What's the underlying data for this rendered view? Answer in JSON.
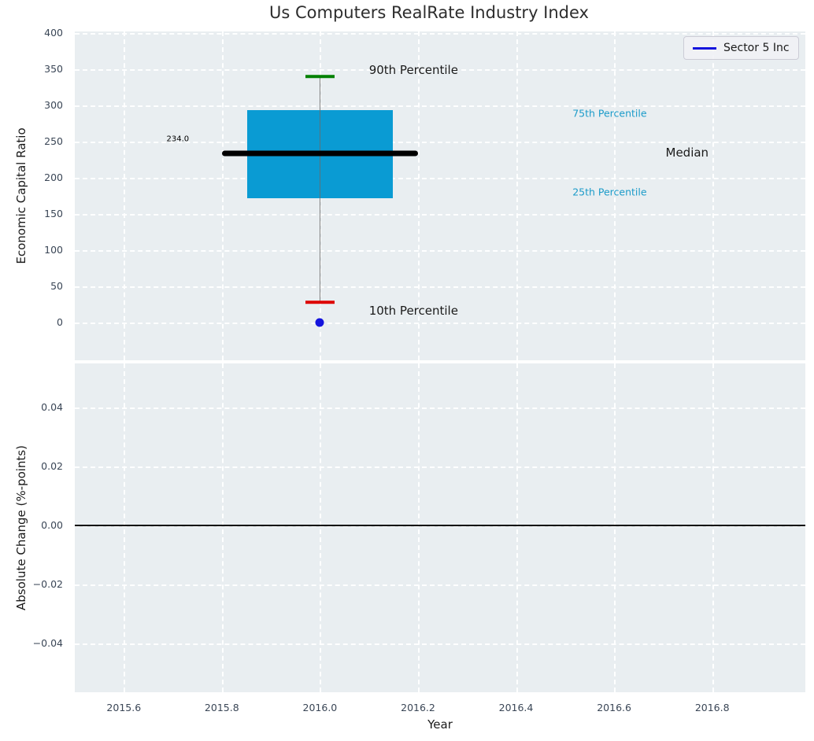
{
  "title": "Us Computers RealRate Industry Index",
  "colors": {
    "axes_background": "#e9eef1",
    "grid": "#ffffff",
    "tick_label": "#3a4656",
    "axis_label": "#1a1a1a",
    "title": "#2d2d2d"
  },
  "legend": {
    "position": "upper right",
    "items": [
      {
        "label": "Sector 5 Inc",
        "color": "#1414dd"
      }
    ]
  },
  "chart_data": [
    {
      "type": "boxplot",
      "panel": "top",
      "ylabel": "Economic Capital Ratio",
      "xlim": [
        2015.5,
        2016.99
      ],
      "ylim": [
        -52,
        402
      ],
      "xtick_values": [
        2015.6,
        2015.8,
        2016.0,
        2016.2,
        2016.4,
        2016.6,
        2016.8
      ],
      "ytick_values": [
        0,
        50,
        100,
        150,
        200,
        250,
        300,
        350,
        400
      ],
      "ytick_labels": [
        "0",
        "50",
        "100",
        "150",
        "200",
        "250",
        "300",
        "350",
        "400"
      ],
      "grid": true,
      "box": {
        "x": 2016.0,
        "p10": 28,
        "p25": 172,
        "median": 234.0,
        "p75": 293,
        "p90": 340,
        "median_label": "234.0",
        "box_half_width": 0.148,
        "median_half_width": 0.2,
        "cap_half_width": 0.03,
        "box_color": "#0a9bd3",
        "median_color": "#000000",
        "whisker_color": "#6b6b6b",
        "p90_cap_color": "#008000",
        "p10_cap_color": "#dd0000"
      },
      "company_point": {
        "x": 2016.0,
        "y": 0,
        "color": "#1414dd",
        "label": "Sector 5 Inc"
      },
      "annotations": [
        {
          "text": "90th Percentile",
          "x": 2016.1,
          "y": 349,
          "color": "#1a1a1a",
          "size": 15,
          "align": "left"
        },
        {
          "text": "75th Percentile",
          "x": 2016.515,
          "y": 289,
          "color": "#1b9bc9",
          "size": 12.5,
          "align": "left"
        },
        {
          "text": "Median",
          "x": 2016.705,
          "y": 235,
          "color": "#1a1a1a",
          "size": 15,
          "align": "left"
        },
        {
          "text": "25th Percentile",
          "x": 2016.515,
          "y": 180,
          "color": "#1b9bc9",
          "size": 12.5,
          "align": "left"
        },
        {
          "text": "10th Percentile",
          "x": 2016.1,
          "y": 16,
          "color": "#1a1a1a",
          "size": 15,
          "align": "left"
        },
        {
          "text": "234.0",
          "x": 2015.71,
          "y": 253,
          "color": "#000000",
          "size": 10,
          "align": "center"
        }
      ]
    },
    {
      "type": "line",
      "panel": "bottom",
      "xlabel": "Year",
      "ylabel": "Absolute Change (%-points)",
      "xlim": [
        2015.5,
        2016.99
      ],
      "ylim": [
        -0.0565,
        0.0549
      ],
      "xtick_values": [
        2015.6,
        2015.8,
        2016.0,
        2016.2,
        2016.4,
        2016.6,
        2016.8
      ],
      "xtick_labels": [
        "2015.6",
        "2015.8",
        "2016.0",
        "2016.2",
        "2016.4",
        "2016.6",
        "2016.8"
      ],
      "ytick_values": [
        0.04,
        0.02,
        0.0,
        -0.02,
        -0.04
      ],
      "ytick_labels": [
        "0.04",
        "0.02",
        "0.00",
        "−0.02",
        "−0.04"
      ],
      "grid": true,
      "zero_line": {
        "y": 0.0,
        "color": "#000000"
      }
    }
  ]
}
